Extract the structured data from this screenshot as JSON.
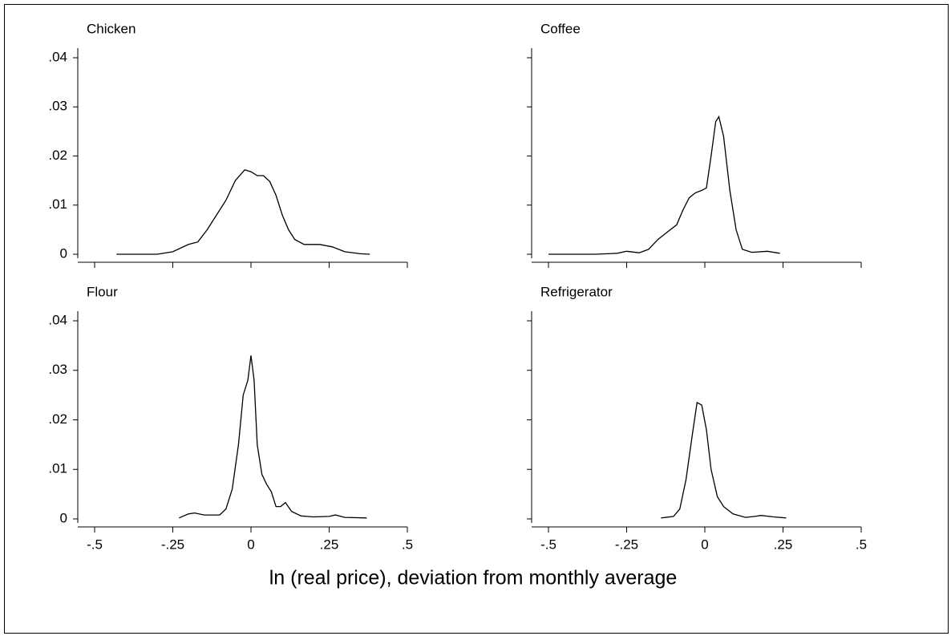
{
  "xlabel": "ln (real price), deviation from monthly average",
  "chart_data": [
    {
      "type": "line",
      "title": "Chicken",
      "x": [
        -0.43,
        -0.35,
        -0.3,
        -0.25,
        -0.2,
        -0.17,
        -0.14,
        -0.11,
        -0.08,
        -0.05,
        -0.02,
        0,
        0.02,
        0.04,
        0.06,
        0.08,
        0.1,
        0.12,
        0.14,
        0.17,
        0.22,
        0.26,
        0.3,
        0.35,
        0.38
      ],
      "values": [
        0,
        0,
        0,
        0.0005,
        0.002,
        0.0025,
        0.005,
        0.008,
        0.011,
        0.015,
        0.0172,
        0.0168,
        0.016,
        0.016,
        0.0148,
        0.012,
        0.008,
        0.005,
        0.003,
        0.002,
        0.002,
        0.0015,
        0.0005,
        0.0001,
        0
      ],
      "color": "#000000",
      "xlim": [
        -0.5,
        0.5
      ],
      "ylim": [
        0,
        0.04
      ],
      "xticks": [
        -0.5,
        -0.25,
        0,
        0.25,
        0.5
      ],
      "xtick_labels": false,
      "yticks": [
        0,
        {
          "value": 0.01,
          "label": ".01"
        },
        {
          "value": 0.02,
          "label": ".02"
        },
        {
          "value": 0.03,
          "label": ".03"
        },
        {
          "value": 0.04,
          "label": ".04"
        }
      ]
    },
    {
      "type": "line",
      "title": "Coffee",
      "x": [
        -0.5,
        -0.35,
        -0.28,
        -0.25,
        -0.21,
        -0.18,
        -0.15,
        -0.12,
        -0.09,
        -0.07,
        -0.05,
        -0.03,
        -0.01,
        0.005,
        0.02,
        0.035,
        0.045,
        0.06,
        0.08,
        0.1,
        0.12,
        0.15,
        0.2,
        0.24
      ],
      "values": [
        0,
        0,
        0.0002,
        0.0006,
        0.0003,
        0.001,
        0.003,
        0.0045,
        0.006,
        0.009,
        0.0115,
        0.0125,
        0.013,
        0.0135,
        0.02,
        0.027,
        0.028,
        0.024,
        0.013,
        0.005,
        0.001,
        0.0004,
        0.0006,
        0.0002
      ],
      "color": "#000000",
      "xlim": [
        -0.5,
        0.5
      ],
      "ylim": [
        0,
        0.04
      ],
      "xticks": [
        -0.5,
        -0.25,
        0,
        0.25,
        0.5
      ],
      "xtick_labels": false,
      "yticks": [
        0,
        0.01,
        0.02,
        0.03,
        0.04
      ],
      "ytick_labels": false
    },
    {
      "type": "line",
      "title": "Flour",
      "x": [
        -0.23,
        -0.2,
        -0.18,
        -0.15,
        -0.1,
        -0.08,
        -0.06,
        -0.04,
        -0.025,
        -0.01,
        0,
        0.01,
        0.02,
        0.035,
        0.05,
        0.065,
        0.08,
        0.095,
        0.11,
        0.13,
        0.16,
        0.2,
        0.25,
        0.27,
        0.3,
        0.37
      ],
      "values": [
        0.0002,
        0.001,
        0.0012,
        0.0008,
        0.0008,
        0.002,
        0.006,
        0.015,
        0.025,
        0.028,
        0.033,
        0.028,
        0.015,
        0.009,
        0.007,
        0.0055,
        0.0025,
        0.0025,
        0.0033,
        0.0015,
        0.0006,
        0.0004,
        0.0005,
        0.0008,
        0.0003,
        0.0002
      ],
      "color": "#000000",
      "xlim": [
        -0.5,
        0.5
      ],
      "ylim": [
        0,
        0.04
      ],
      "xticks": [
        {
          "value": -0.5,
          "label": "-.5"
        },
        {
          "value": -0.25,
          "label": "-.25"
        },
        0,
        {
          "value": 0.25,
          "label": ".25"
        },
        {
          "value": 0.5,
          "label": ".5"
        }
      ],
      "yticks": [
        0,
        {
          "value": 0.01,
          "label": ".01"
        },
        {
          "value": 0.02,
          "label": ".02"
        },
        {
          "value": 0.03,
          "label": ".03"
        },
        {
          "value": 0.04,
          "label": ".04"
        }
      ]
    },
    {
      "type": "line",
      "title": "Refrigerator",
      "x": [
        -0.14,
        -0.1,
        -0.08,
        -0.06,
        -0.04,
        -0.025,
        -0.01,
        0.005,
        0.02,
        0.04,
        0.06,
        0.09,
        0.13,
        0.16,
        0.18,
        0.22,
        0.26
      ],
      "values": [
        0.0002,
        0.0005,
        0.002,
        0.008,
        0.017,
        0.0235,
        0.023,
        0.018,
        0.01,
        0.0045,
        0.0025,
        0.001,
        0.0003,
        0.0005,
        0.0007,
        0.0004,
        0.0002
      ],
      "color": "#000000",
      "xlim": [
        -0.5,
        0.5
      ],
      "ylim": [
        0,
        0.04
      ],
      "xticks": [
        {
          "value": -0.5,
          "label": "-.5"
        },
        {
          "value": -0.25,
          "label": "-.25"
        },
        0,
        {
          "value": 0.25,
          "label": ".25"
        },
        {
          "value": 0.5,
          "label": ".5"
        }
      ],
      "yticks": [
        0,
        0.01,
        0.02,
        0.03,
        0.04
      ],
      "ytick_labels": false
    }
  ]
}
